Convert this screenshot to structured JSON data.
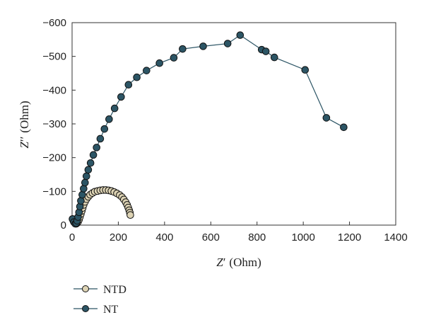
{
  "chart_data": {
    "type": "scatter",
    "xlabel_sym": "Z",
    "xlabel_prime": "′",
    "xlabel_unit": "(Ohm)",
    "ylabel_sym": "Z",
    "ylabel_prime": "′′",
    "ylabel_unit": "(Ohm)",
    "xlim": [
      0,
      1400
    ],
    "ylim": [
      0,
      -600
    ],
    "x_ticks": [
      "0",
      "200",
      "400",
      "600",
      "800",
      "1000",
      "1200",
      "1400"
    ],
    "y_ticks": [
      "0",
      "−100",
      "−200",
      "−300",
      "−400",
      "−500",
      "−600"
    ],
    "x_tick_values": [
      0,
      200,
      400,
      600,
      800,
      1000,
      1200,
      1400
    ],
    "y_tick_values": [
      0,
      -100,
      -200,
      -300,
      -400,
      -500,
      -600
    ],
    "grid": false,
    "legend_position": "bottom-left",
    "series": [
      {
        "name": "NTD",
        "color": "#ddd3b4",
        "points": [
          [
            2,
            -18
          ],
          [
            6,
            -12
          ],
          [
            10,
            -8
          ],
          [
            14,
            -5
          ],
          [
            18,
            -4
          ],
          [
            22,
            -6
          ],
          [
            26,
            -10
          ],
          [
            30,
            -16
          ],
          [
            34,
            -24
          ],
          [
            38,
            -33
          ],
          [
            42,
            -42
          ],
          [
            46,
            -51
          ],
          [
            50,
            -60
          ],
          [
            56,
            -69
          ],
          [
            62,
            -77
          ],
          [
            70,
            -84
          ],
          [
            78,
            -90
          ],
          [
            88,
            -95
          ],
          [
            98,
            -99
          ],
          [
            110,
            -101
          ],
          [
            122,
            -103
          ],
          [
            134,
            -104
          ],
          [
            146,
            -104
          ],
          [
            158,
            -103
          ],
          [
            170,
            -101
          ],
          [
            182,
            -98
          ],
          [
            194,
            -94
          ],
          [
            206,
            -89
          ],
          [
            216,
            -83
          ],
          [
            224,
            -76
          ],
          [
            232,
            -68
          ],
          [
            238,
            -60
          ],
          [
            243,
            -52
          ],
          [
            247,
            -44
          ],
          [
            250,
            -37
          ],
          [
            252,
            -30
          ]
        ]
      },
      {
        "name": "NT",
        "color": "#2c5565",
        "points": [
          [
            2,
            -18
          ],
          [
            8,
            -9
          ],
          [
            14,
            -4
          ],
          [
            18,
            -6
          ],
          [
            22,
            -13
          ],
          [
            26,
            -24
          ],
          [
            30,
            -38
          ],
          [
            34,
            -55
          ],
          [
            38,
            -72
          ],
          [
            44,
            -90
          ],
          [
            50,
            -108
          ],
          [
            56,
            -126
          ],
          [
            62,
            -145
          ],
          [
            70,
            -164
          ],
          [
            80,
            -184
          ],
          [
            92,
            -208
          ],
          [
            106,
            -230
          ],
          [
            122,
            -256
          ],
          [
            140,
            -285
          ],
          [
            160,
            -314
          ],
          [
            184,
            -346
          ],
          [
            212,
            -380
          ],
          [
            244,
            -416
          ],
          [
            280,
            -438
          ],
          [
            322,
            -458
          ],
          [
            378,
            -480
          ],
          [
            440,
            -496
          ],
          [
            478,
            -522
          ],
          [
            567,
            -530
          ],
          [
            673,
            -538
          ],
          [
            727,
            -563
          ],
          [
            820,
            -520
          ],
          [
            838,
            -515
          ],
          [
            875,
            -497
          ],
          [
            1008,
            -460
          ],
          [
            1100,
            -318
          ],
          [
            1175,
            -290
          ]
        ]
      }
    ]
  }
}
